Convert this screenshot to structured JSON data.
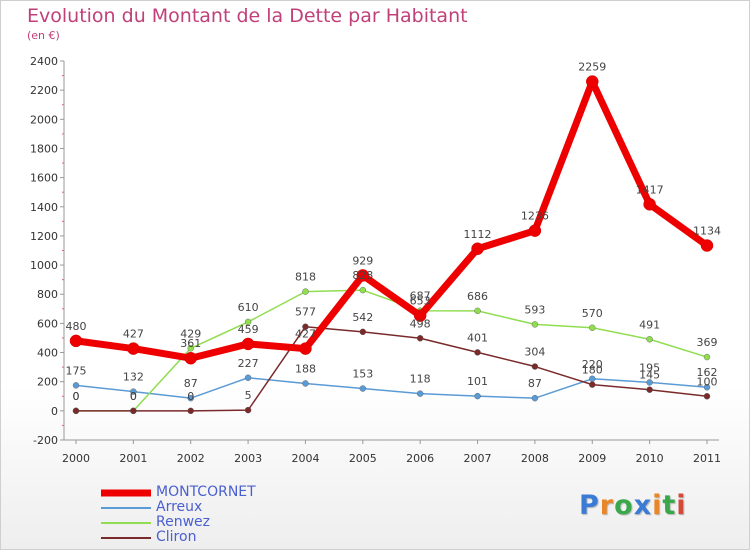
{
  "title": "Evolution du Montant de la Dette par Habitant",
  "subtitle": "(en €)",
  "logo": {
    "text": "Proxiti",
    "letter_colors": [
      "#3a7bd5",
      "#e8862a",
      "#39a84a",
      "#3a7bd5",
      "#e8862a",
      "#39a84a",
      "#d14a3a"
    ]
  },
  "chart_data": {
    "type": "line",
    "x": [
      "2000",
      "2001",
      "2002",
      "2003",
      "2004",
      "2005",
      "2006",
      "2007",
      "2008",
      "2009",
      "2010",
      "2011"
    ],
    "ylim": [
      -200,
      2400
    ],
    "yticks": [
      -200,
      0,
      200,
      400,
      600,
      800,
      1000,
      1200,
      1400,
      1600,
      1800,
      2000,
      2200,
      2400
    ],
    "grid": false,
    "legend_position": "bottom-left",
    "series": [
      {
        "name": "MONTCORNET",
        "color": "#ee0000",
        "values": [
          480,
          427,
          361,
          459,
          427,
          929,
          653,
          1112,
          1236,
          2259,
          1417,
          1134
        ],
        "labels": [
          "480",
          "427",
          "361",
          "459",
          "427",
          "929",
          "653",
          "1112",
          "1236",
          "2259",
          "1417",
          "1134"
        ]
      },
      {
        "name": "Arreux",
        "color": "#5b9bd5",
        "values": [
          175,
          132,
          87,
          227,
          188,
          153,
          118,
          101,
          87,
          220,
          195,
          162
        ],
        "labels": [
          "175",
          "132",
          "87",
          "227",
          "188",
          "153",
          "118",
          "101",
          "87",
          "220",
          "195",
          "162"
        ]
      },
      {
        "name": "Renwez",
        "color": "#90dd50",
        "values": [
          0,
          0,
          429,
          610,
          818,
          828,
          687,
          686,
          593,
          570,
          491,
          369
        ],
        "labels": [
          "0",
          "0",
          "429",
          "610",
          "818",
          "828",
          "687",
          "686",
          "593",
          "570",
          "491",
          "369"
        ]
      },
      {
        "name": "Cliron",
        "color": "#7a2a2a",
        "values": [
          0,
          0,
          0,
          5,
          577,
          542,
          498,
          401,
          304,
          180,
          145,
          100
        ],
        "labels": [
          "0",
          "0",
          "0",
          "5",
          "577",
          "542",
          "498",
          "401",
          "304",
          "180",
          "145",
          "100"
        ]
      }
    ]
  }
}
